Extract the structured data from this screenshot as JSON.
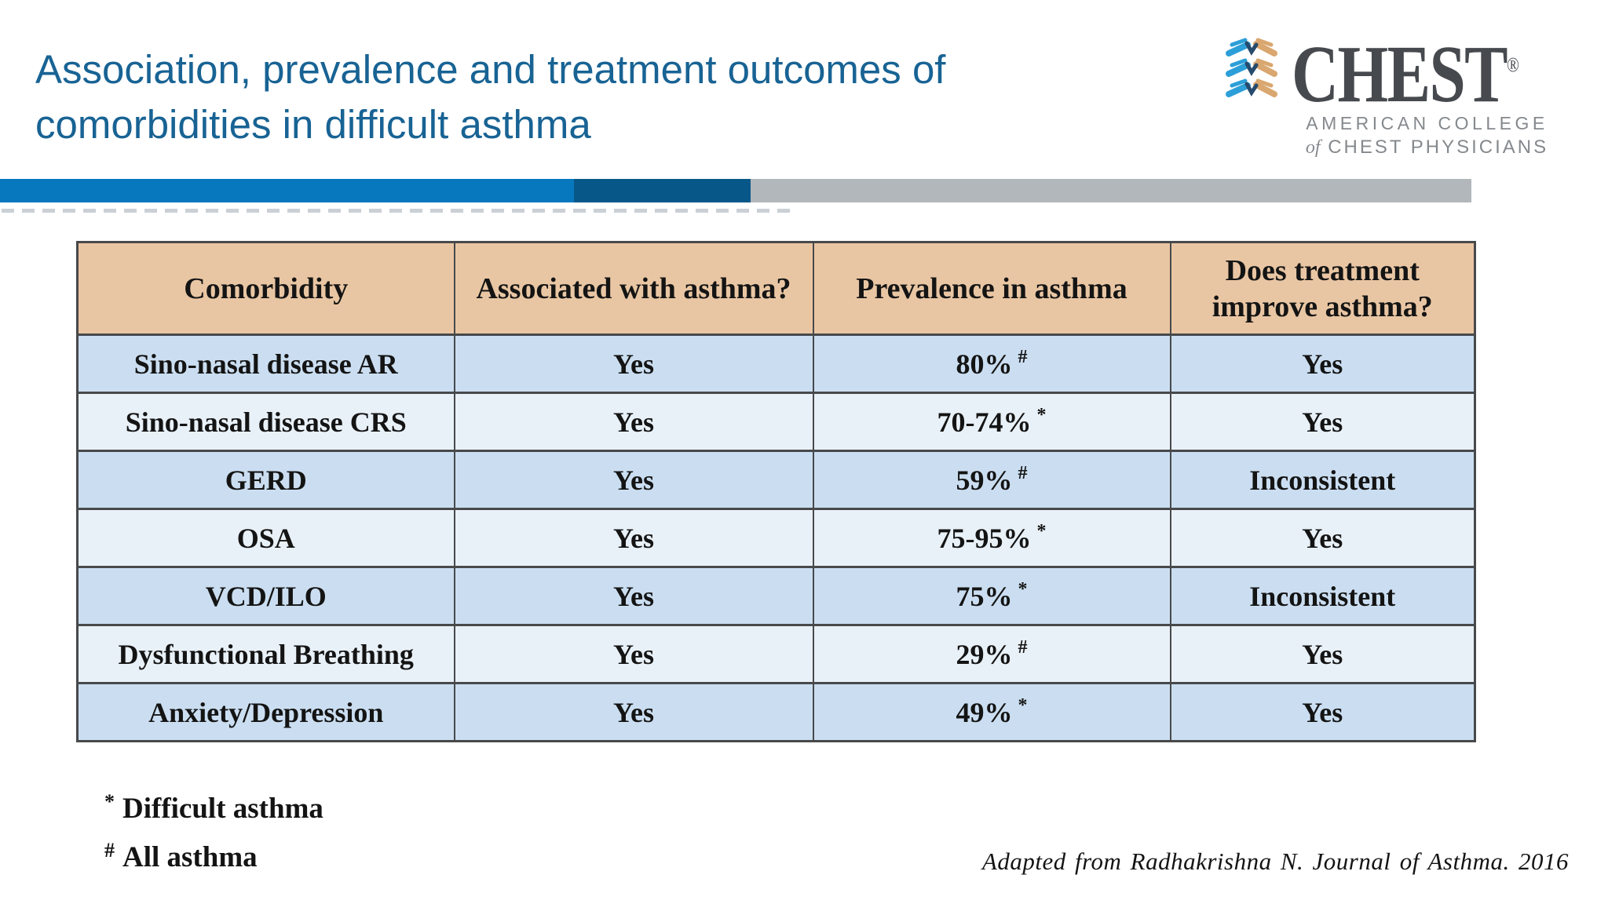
{
  "slide": {
    "title_line1": "Association, prevalence and treatment outcomes of",
    "title_line2": "comorbidities in difficult asthma"
  },
  "logo": {
    "wordmark": "CHEST",
    "registered_mark": "®",
    "subtitle_line1": "AMERICAN COLLEGE",
    "subtitle_line2_of": "of",
    "subtitle_line2_rest": "CHEST PHYSICIANS",
    "icon": "chest-stripes-icon"
  },
  "table": {
    "headers": [
      "Comorbidity",
      "Associated with asthma?",
      "Prevalence in asthma",
      "Does treatment improve asthma?"
    ],
    "rows": [
      {
        "comorbidity": "Sino-nasal disease AR",
        "associated": "Yes",
        "prevalence": "80%",
        "prevalence_mark": "#",
        "treatment": "Yes"
      },
      {
        "comorbidity": "Sino-nasal disease CRS",
        "associated": "Yes",
        "prevalence": "70-74%",
        "prevalence_mark": "*",
        "treatment": "Yes"
      },
      {
        "comorbidity": "GERD",
        "associated": "Yes",
        "prevalence": "59%",
        "prevalence_mark": "#",
        "treatment": "Inconsistent"
      },
      {
        "comorbidity": "OSA",
        "associated": "Yes",
        "prevalence": "75-95%",
        "prevalence_mark": "*",
        "treatment": "Yes"
      },
      {
        "comorbidity": "VCD/ILO",
        "associated": "Yes",
        "prevalence": "75%",
        "prevalence_mark": "*",
        "treatment": "Inconsistent"
      },
      {
        "comorbidity": "Dysfunctional Breathing",
        "associated": "Yes",
        "prevalence": "29%",
        "prevalence_mark": "#",
        "treatment": "Yes"
      },
      {
        "comorbidity": "Anxiety/Depression",
        "associated": "Yes",
        "prevalence": "49%",
        "prevalence_mark": "*",
        "treatment": "Yes"
      }
    ]
  },
  "footnotes": [
    {
      "mark": "*",
      "text": "Difficult asthma"
    },
    {
      "mark": "#",
      "text": "All asthma"
    }
  ],
  "citation": "Adapted from Radhakrishna N. Journal of Asthma. 2016",
  "colors": {
    "title_blue": "#186394",
    "band_blue": "#0878BE",
    "band_dark_blue": "#075889",
    "band_gray": "#B2B7BB",
    "header_tan": "#E9C6A3",
    "row_dark_blue": "#CBDEF1",
    "row_light_blue": "#E9F1F8",
    "table_border": "#47494B",
    "logo_gray": "#46494E",
    "logo_icon_blue": "#2C9FD8",
    "logo_icon_tan": "#D9A76F",
    "logo_icon_navy": "#274B6D"
  }
}
